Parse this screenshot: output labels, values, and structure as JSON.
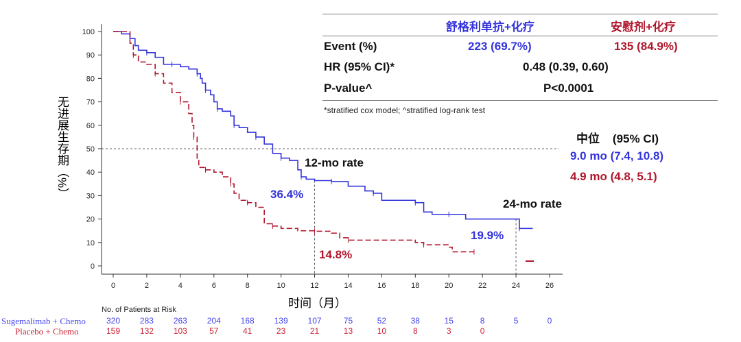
{
  "table": {
    "col1": "舒格利单抗+化疗",
    "col2": "安慰剂+化疗",
    "rows": [
      {
        "label": "Event (%)",
        "v1": "223 (69.7%)",
        "v2": "135 (84.9%)"
      },
      {
        "label": "HR (95% CI)*",
        "v": "0.48 (0.39, 0.60)"
      },
      {
        "label": "P-value^",
        "v": "P<0.0001"
      }
    ],
    "footnote": "*stratified cox model; ^stratified log-rank test"
  },
  "median": {
    "title": "中位",
    "ci": "(95% CI)",
    "blue": "9.0 mo (7.4, 10.8)",
    "red": "4.9 mo (4.8, 5.1)"
  },
  "annotations": {
    "rate12": "12-mo rate",
    "rate24": "24-mo rate",
    "b12": "36.4%",
    "r12": "14.8%",
    "b24": "19.9%"
  },
  "risk": {
    "title": "No. of Patients at Risk",
    "blue_label": "Sugemalimab + Chemo",
    "red_label": "Placebo + Chemo",
    "blue": [
      "320",
      "283",
      "263",
      "204",
      "168",
      "139",
      "107",
      "75",
      "52",
      "38",
      "15",
      "8",
      "5",
      "0"
    ],
    "red": [
      "159",
      "132",
      "103",
      "57",
      "41",
      "23",
      "21",
      "13",
      "10",
      "8",
      "3",
      "0"
    ]
  },
  "colors": {
    "blue": "#3333dd",
    "red": "#b0162b"
  },
  "chart_data": {
    "type": "line",
    "title": "",
    "xlabel": "时间（月）",
    "ylabel": "无进展生存期（%）",
    "xlim": [
      0,
      26
    ],
    "ylim": [
      0,
      100
    ],
    "xticks": [
      "0",
      "2",
      "4",
      "6",
      "8",
      "10",
      "12",
      "14",
      "16",
      "18",
      "20",
      "22",
      "24",
      "26"
    ],
    "yticks": [
      "0",
      "10",
      "20",
      "30",
      "40",
      "50",
      "60",
      "70",
      "80",
      "90",
      "100"
    ],
    "reference_line_y": 50,
    "series": [
      {
        "name": "Sugemalimab + Chemo",
        "color": "#3333dd",
        "points": [
          [
            0,
            100
          ],
          [
            0.5,
            99
          ],
          [
            1,
            97
          ],
          [
            1.3,
            94
          ],
          [
            1.5,
            92
          ],
          [
            2,
            91
          ],
          [
            2.5,
            89
          ],
          [
            3,
            86
          ],
          [
            3.5,
            86
          ],
          [
            4,
            85
          ],
          [
            4.5,
            84
          ],
          [
            5,
            82
          ],
          [
            5.2,
            80
          ],
          [
            5.3,
            78
          ],
          [
            5.5,
            75
          ],
          [
            5.8,
            73
          ],
          [
            6,
            70
          ],
          [
            6.2,
            67
          ],
          [
            6.5,
            66
          ],
          [
            7,
            64
          ],
          [
            7.2,
            60
          ],
          [
            7.5,
            59
          ],
          [
            8,
            57
          ],
          [
            8.5,
            55
          ],
          [
            9,
            52
          ],
          [
            9.5,
            48
          ],
          [
            10,
            46
          ],
          [
            10.5,
            45
          ],
          [
            11,
            41
          ],
          [
            11.2,
            38
          ],
          [
            11.5,
            37
          ],
          [
            12,
            36.4
          ],
          [
            13,
            36
          ],
          [
            14,
            34
          ],
          [
            15,
            32
          ],
          [
            15.5,
            31
          ],
          [
            16,
            28
          ],
          [
            17,
            28
          ],
          [
            18,
            27
          ],
          [
            18.5,
            23
          ],
          [
            19,
            22
          ],
          [
            20,
            22
          ],
          [
            21,
            20
          ],
          [
            24,
            20
          ],
          [
            24.2,
            16
          ],
          [
            25,
            16
          ]
        ]
      },
      {
        "name": "Placebo + Chemo",
        "color": "#b0162b",
        "points": [
          [
            0,
            100
          ],
          [
            1,
            95
          ],
          [
            1.2,
            90
          ],
          [
            1.5,
            87
          ],
          [
            2,
            86
          ],
          [
            2.5,
            82
          ],
          [
            3,
            78
          ],
          [
            3.5,
            74
          ],
          [
            4,
            70
          ],
          [
            4.5,
            65
          ],
          [
            4.7,
            60
          ],
          [
            4.8,
            55
          ],
          [
            5,
            46
          ],
          [
            5.1,
            42
          ],
          [
            5.5,
            41
          ],
          [
            6,
            40
          ],
          [
            6.5,
            38
          ],
          [
            7,
            35
          ],
          [
            7.2,
            31
          ],
          [
            7.5,
            28
          ],
          [
            8,
            27
          ],
          [
            8.5,
            25
          ],
          [
            9,
            18
          ],
          [
            9.5,
            17
          ],
          [
            10,
            16
          ],
          [
            11,
            15
          ],
          [
            12,
            14.8
          ],
          [
            13,
            14
          ],
          [
            13.5,
            12
          ],
          [
            14,
            11
          ],
          [
            16,
            11
          ],
          [
            18,
            10
          ],
          [
            18.5,
            9
          ],
          [
            20,
            8
          ],
          [
            20.2,
            6
          ],
          [
            21.5,
            6
          ]
        ]
      }
    ]
  }
}
